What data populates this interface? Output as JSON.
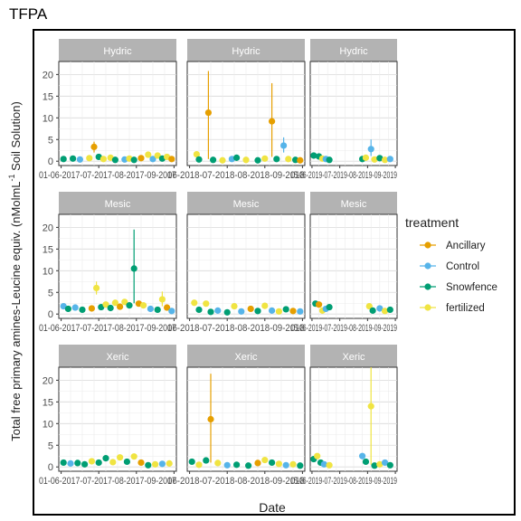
{
  "chart_data": {
    "type": "scatter",
    "title": "TFPA",
    "xlabel": "Date",
    "ylabel_main": "Total free primary amines-Leucine equiv. (nMolmL",
    "ylabel_sup": "-1",
    "ylabel_end": " Soil Solution)",
    "ylim": [
      -1,
      23
    ],
    "yticks": [
      0,
      5,
      10,
      15,
      20
    ],
    "grid": true,
    "legend_position": "right",
    "legend_title": "treatment",
    "series_colors": {
      "Ancillary": "#E69F00",
      "Control": "#56B4E9",
      "Snowfence": "#009E73",
      "fertilized": "#F0E442"
    },
    "legend_labels": [
      "Ancillary",
      "Control",
      "Snowfence",
      "fertilized"
    ],
    "rows": [
      "Hydric",
      "Mesic",
      "Xeric"
    ],
    "col_tick_labels": [
      [
        "01-06-2017",
        "2017-07-2017",
        "2017-08-2017",
        "2017-09-2017"
      ],
      [
        "2016-06-2018",
        "2018-07-2018",
        "2018-08-2018",
        "2018-09-2018"
      ],
      [
        "2015-06-2019",
        "2019-07-2019",
        "2019-08-2019",
        "2019-09-2019"
      ]
    ],
    "col_tick_texts": [
      [
        "01-06-20",
        "17-07-20",
        "17-08-20",
        "17-09-2017"
      ],
      [
        "06-20",
        "18-07-20",
        "18-08-20",
        "18-09-2018"
      ],
      [
        "15-06-20",
        "19-07-20",
        "19-08-20",
        "19-09-2019"
      ]
    ],
    "panels": [
      [
        [
          {
            "x": 0.04,
            "y": 0.5,
            "s": "Snowfence"
          },
          {
            "x": 0.12,
            "y": 0.6,
            "s": "Snowfence"
          },
          {
            "x": 0.18,
            "y": 0.4,
            "s": "Control"
          },
          {
            "x": 0.26,
            "y": 0.7,
            "s": "fertilized"
          },
          {
            "x": 0.3,
            "y": 3.3,
            "s": "Ancillary",
            "lo": 2.0,
            "hi": 4.5
          },
          {
            "x": 0.34,
            "y": 1.0,
            "s": "Snowfence"
          },
          {
            "x": 0.38,
            "y": 0.5,
            "s": "fertilized"
          },
          {
            "x": 0.44,
            "y": 0.8,
            "s": "fertilized"
          },
          {
            "x": 0.48,
            "y": 0.3,
            "s": "Snowfence"
          },
          {
            "x": 0.56,
            "y": 0.4,
            "s": "Control"
          },
          {
            "x": 0.6,
            "y": 0.6,
            "s": "fertilized"
          },
          {
            "x": 0.64,
            "y": 0.3,
            "s": "Snowfence"
          },
          {
            "x": 0.7,
            "y": 0.7,
            "s": "Ancillary"
          },
          {
            "x": 0.76,
            "y": 1.5,
            "s": "fertilized"
          },
          {
            "x": 0.8,
            "y": 0.5,
            "s": "Control"
          },
          {
            "x": 0.84,
            "y": 1.3,
            "s": "fertilized"
          },
          {
            "x": 0.88,
            "y": 0.6,
            "s": "Snowfence"
          },
          {
            "x": 0.92,
            "y": 1.0,
            "s": "fertilized"
          },
          {
            "x": 0.96,
            "y": 0.5,
            "s": "Ancillary"
          }
        ],
        [
          {
            "x": 0.08,
            "y": 1.6,
            "s": "fertilized"
          },
          {
            "x": 0.1,
            "y": 0.4,
            "s": "Snowfence"
          },
          {
            "x": 0.18,
            "y": 11.2,
            "s": "Ancillary",
            "lo": 0.5,
            "hi": 20.8
          },
          {
            "x": 0.22,
            "y": 0.3,
            "s": "Snowfence"
          },
          {
            "x": 0.3,
            "y": 0.2,
            "s": "fertilized"
          },
          {
            "x": 0.38,
            "y": 0.5,
            "s": "Control"
          },
          {
            "x": 0.42,
            "y": 0.8,
            "s": "Snowfence"
          },
          {
            "x": 0.5,
            "y": 0.3,
            "s": "fertilized"
          },
          {
            "x": 0.6,
            "y": 0.2,
            "s": "Snowfence"
          },
          {
            "x": 0.66,
            "y": 0.6,
            "s": "fertilized"
          },
          {
            "x": 0.72,
            "y": 9.2,
            "s": "Ancillary",
            "lo": 1.0,
            "hi": 18.0
          },
          {
            "x": 0.76,
            "y": 0.5,
            "s": "Snowfence"
          },
          {
            "x": 0.82,
            "y": 3.6,
            "s": "Control",
            "lo": 2.0,
            "hi": 5.5
          },
          {
            "x": 0.86,
            "y": 0.5,
            "s": "fertilized"
          },
          {
            "x": 0.92,
            "y": 0.3,
            "s": "Snowfence"
          },
          {
            "x": 0.96,
            "y": 0.2,
            "s": "Ancillary"
          }
        ],
        [
          {
            "x": 0.04,
            "y": 1.3,
            "s": "Snowfence"
          },
          {
            "x": 0.1,
            "y": 1.1,
            "s": "Snowfence"
          },
          {
            "x": 0.14,
            "y": 0.6,
            "s": "fertilized"
          },
          {
            "x": 0.18,
            "y": 0.5,
            "s": "Control"
          },
          {
            "x": 0.22,
            "y": 0.3,
            "s": "Snowfence"
          },
          {
            "x": 0.6,
            "y": 0.5,
            "s": "Snowfence"
          },
          {
            "x": 0.64,
            "y": 0.8,
            "s": "fertilized"
          },
          {
            "x": 0.7,
            "y": 2.8,
            "s": "Control",
            "lo": 1.2,
            "hi": 5.0
          },
          {
            "x": 0.74,
            "y": 0.4,
            "s": "fertilized"
          },
          {
            "x": 0.8,
            "y": 0.7,
            "s": "Snowfence"
          },
          {
            "x": 0.86,
            "y": 0.3,
            "s": "fertilized"
          },
          {
            "x": 0.92,
            "y": 0.5,
            "s": "Control"
          }
        ]
      ],
      [
        [
          {
            "x": 0.04,
            "y": 1.8,
            "s": "Control"
          },
          {
            "x": 0.08,
            "y": 1.2,
            "s": "Snowfence"
          },
          {
            "x": 0.14,
            "y": 1.5,
            "s": "Control"
          },
          {
            "x": 0.2,
            "y": 1.0,
            "s": "Snowfence"
          },
          {
            "x": 0.28,
            "y": 1.3,
            "s": "Ancillary"
          },
          {
            "x": 0.32,
            "y": 6.0,
            "s": "fertilized",
            "lo": 4.5,
            "hi": 7.5
          },
          {
            "x": 0.36,
            "y": 1.6,
            "s": "Snowfence"
          },
          {
            "x": 0.4,
            "y": 2.2,
            "s": "fertilized"
          },
          {
            "x": 0.44,
            "y": 1.4,
            "s": "Snowfence"
          },
          {
            "x": 0.48,
            "y": 2.6,
            "s": "fertilized"
          },
          {
            "x": 0.52,
            "y": 1.7,
            "s": "Ancillary"
          },
          {
            "x": 0.56,
            "y": 2.8,
            "s": "fertilized"
          },
          {
            "x": 0.6,
            "y": 2.0,
            "s": "Snowfence"
          },
          {
            "x": 0.64,
            "y": 10.5,
            "s": "Snowfence",
            "lo": 2.5,
            "hi": 19.5
          },
          {
            "x": 0.68,
            "y": 2.4,
            "s": "Ancillary"
          },
          {
            "x": 0.72,
            "y": 2.0,
            "s": "fertilized"
          },
          {
            "x": 0.78,
            "y": 1.2,
            "s": "Control"
          },
          {
            "x": 0.84,
            "y": 1.0,
            "s": "Snowfence"
          },
          {
            "x": 0.88,
            "y": 3.4,
            "s": "fertilized",
            "lo": 1.8,
            "hi": 5.2
          },
          {
            "x": 0.92,
            "y": 1.5,
            "s": "Ancillary"
          },
          {
            "x": 0.96,
            "y": 0.7,
            "s": "Control"
          }
        ],
        [
          {
            "x": 0.06,
            "y": 2.6,
            "s": "fertilized"
          },
          {
            "x": 0.1,
            "y": 1.0,
            "s": "Snowfence"
          },
          {
            "x": 0.16,
            "y": 2.4,
            "s": "fertilized"
          },
          {
            "x": 0.2,
            "y": 0.5,
            "s": "Snowfence"
          },
          {
            "x": 0.26,
            "y": 0.8,
            "s": "Control"
          },
          {
            "x": 0.34,
            "y": 0.4,
            "s": "Snowfence"
          },
          {
            "x": 0.4,
            "y": 1.8,
            "s": "fertilized"
          },
          {
            "x": 0.46,
            "y": 0.6,
            "s": "Control"
          },
          {
            "x": 0.54,
            "y": 1.2,
            "s": "Ancillary"
          },
          {
            "x": 0.6,
            "y": 0.7,
            "s": "Snowfence"
          },
          {
            "x": 0.66,
            "y": 1.9,
            "s": "fertilized"
          },
          {
            "x": 0.72,
            "y": 0.8,
            "s": "Control"
          },
          {
            "x": 0.78,
            "y": 0.6,
            "s": "fertilized"
          },
          {
            "x": 0.84,
            "y": 1.1,
            "s": "Snowfence"
          },
          {
            "x": 0.9,
            "y": 0.7,
            "s": "Ancillary"
          },
          {
            "x": 0.96,
            "y": 0.6,
            "s": "Control"
          }
        ],
        [
          {
            "x": 0.06,
            "y": 2.4,
            "s": "Snowfence"
          },
          {
            "x": 0.1,
            "y": 2.2,
            "s": "Ancillary"
          },
          {
            "x": 0.14,
            "y": 0.8,
            "s": "fertilized"
          },
          {
            "x": 0.18,
            "y": 1.2,
            "s": "Control"
          },
          {
            "x": 0.22,
            "y": 1.6,
            "s": "Snowfence"
          },
          {
            "x": 0.68,
            "y": 1.8,
            "s": "fertilized"
          },
          {
            "x": 0.72,
            "y": 0.8,
            "s": "Snowfence"
          },
          {
            "x": 0.8,
            "y": 1.3,
            "s": "Control"
          },
          {
            "x": 0.86,
            "y": 0.7,
            "s": "fertilized"
          },
          {
            "x": 0.92,
            "y": 1.0,
            "s": "Snowfence"
          }
        ]
      ],
      [
        [
          {
            "x": 0.04,
            "y": 1.0,
            "s": "Snowfence"
          },
          {
            "x": 0.1,
            "y": 0.8,
            "s": "Control"
          },
          {
            "x": 0.16,
            "y": 0.9,
            "s": "Snowfence"
          },
          {
            "x": 0.22,
            "y": 0.6,
            "s": "Snowfence"
          },
          {
            "x": 0.28,
            "y": 1.3,
            "s": "fertilized"
          },
          {
            "x": 0.34,
            "y": 1.0,
            "s": "Snowfence"
          },
          {
            "x": 0.4,
            "y": 2.0,
            "s": "Snowfence"
          },
          {
            "x": 0.46,
            "y": 1.1,
            "s": "fertilized"
          },
          {
            "x": 0.52,
            "y": 2.2,
            "s": "fertilized"
          },
          {
            "x": 0.58,
            "y": 1.2,
            "s": "Snowfence"
          },
          {
            "x": 0.64,
            "y": 2.4,
            "s": "fertilized"
          },
          {
            "x": 0.7,
            "y": 1.0,
            "s": "Ancillary"
          },
          {
            "x": 0.76,
            "y": 0.4,
            "s": "Snowfence"
          },
          {
            "x": 0.82,
            "y": 0.6,
            "s": "fertilized"
          },
          {
            "x": 0.88,
            "y": 0.7,
            "s": "Control"
          },
          {
            "x": 0.94,
            "y": 0.8,
            "s": "fertilized"
          }
        ],
        [
          {
            "x": 0.04,
            "y": 1.2,
            "s": "Snowfence"
          },
          {
            "x": 0.1,
            "y": 0.5,
            "s": "fertilized"
          },
          {
            "x": 0.16,
            "y": 1.5,
            "s": "Snowfence"
          },
          {
            "x": 0.2,
            "y": 11.0,
            "s": "Ancillary",
            "lo": 1.0,
            "hi": 21.5
          },
          {
            "x": 0.26,
            "y": 0.9,
            "s": "fertilized"
          },
          {
            "x": 0.34,
            "y": 0.4,
            "s": "Control"
          },
          {
            "x": 0.42,
            "y": 0.5,
            "s": "Snowfence"
          },
          {
            "x": 0.52,
            "y": 0.3,
            "s": "Snowfence"
          },
          {
            "x": 0.6,
            "y": 0.9,
            "s": "Ancillary"
          },
          {
            "x": 0.66,
            "y": 1.6,
            "s": "fertilized"
          },
          {
            "x": 0.72,
            "y": 1.0,
            "s": "Snowfence"
          },
          {
            "x": 0.78,
            "y": 0.7,
            "s": "fertilized"
          },
          {
            "x": 0.84,
            "y": 0.4,
            "s": "Control"
          },
          {
            "x": 0.9,
            "y": 0.6,
            "s": "fertilized"
          },
          {
            "x": 0.96,
            "y": 0.3,
            "s": "Snowfence"
          }
        ],
        [
          {
            "x": 0.04,
            "y": 1.8,
            "s": "Snowfence"
          },
          {
            "x": 0.08,
            "y": 2.5,
            "s": "fertilized"
          },
          {
            "x": 0.12,
            "y": 1.0,
            "s": "Snowfence"
          },
          {
            "x": 0.16,
            "y": 0.6,
            "s": "Control"
          },
          {
            "x": 0.22,
            "y": 0.4,
            "s": "fertilized"
          },
          {
            "x": 0.6,
            "y": 2.5,
            "s": "Control"
          },
          {
            "x": 0.64,
            "y": 1.2,
            "s": "Snowfence"
          },
          {
            "x": 0.7,
            "y": 14.0,
            "s": "fertilized",
            "lo": 0.5,
            "hi": 28.0
          },
          {
            "x": 0.74,
            "y": 0.3,
            "s": "Snowfence"
          },
          {
            "x": 0.8,
            "y": 0.6,
            "s": "fertilized"
          },
          {
            "x": 0.86,
            "y": 1.0,
            "s": "Control"
          },
          {
            "x": 0.92,
            "y": 0.4,
            "s": "Snowfence"
          }
        ]
      ]
    ]
  }
}
